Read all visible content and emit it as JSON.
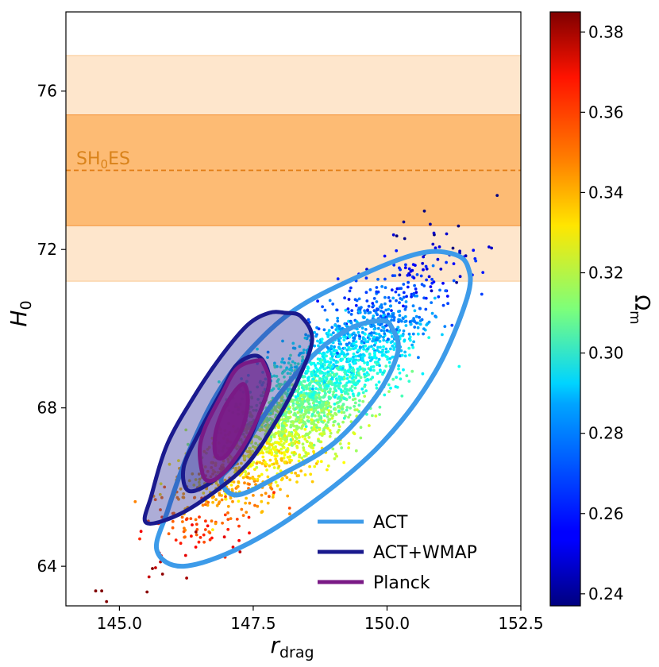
{
  "chart_data": {
    "type": "scatter",
    "xlabel": "r",
    "xlabel_sub": "drag",
    "ylabel": "H",
    "ylabel_sub": "0",
    "xlim": [
      144.0,
      152.5
    ],
    "ylim": [
      63.0,
      78.0
    ],
    "xticks": [
      145.0,
      147.5,
      150.0,
      152.5
    ],
    "xtick_labels": [
      "145.0",
      "147.5",
      "150.0",
      "152.5"
    ],
    "yticks": [
      64,
      68,
      72,
      76
    ],
    "ytick_labels": [
      "64",
      "68",
      "72",
      "76"
    ],
    "sh0es": {
      "label_main": "SH",
      "label_sub": "0",
      "label_end": "ES",
      "mean": 74.0,
      "band_1sigma": [
        72.6,
        75.4
      ],
      "band_2sigma": [
        71.2,
        76.9
      ]
    },
    "colorbar": {
      "label": "Ω",
      "label_sub": "m",
      "min": 0.237,
      "max": 0.385,
      "ticks": [
        0.24,
        0.26,
        0.28,
        0.3,
        0.32,
        0.34,
        0.36,
        0.38
      ],
      "tick_labels": [
        "0.24",
        "0.26",
        "0.28",
        "0.30",
        "0.32",
        "0.34",
        "0.36",
        "0.38"
      ]
    },
    "scatter_model": {
      "n_points": 2600,
      "mean_x": 148.6,
      "mean_y": 68.3,
      "sd_x": 1.15,
      "sd_y": 1.55,
      "correlation": 0.86,
      "omega_m_center": 0.305,
      "omega_m_slope_vs_H0": -0.0155,
      "omega_m_scatter": 0.006
    },
    "contours": [
      {
        "name": "ACT",
        "color": "#3d9be9",
        "outer": [
          [
            151.2,
            71.9
          ],
          [
            150.6,
            71.9
          ],
          [
            149.6,
            71.4
          ],
          [
            148.3,
            70.5
          ],
          [
            147.4,
            69.4
          ],
          [
            146.8,
            68.3
          ],
          [
            146.3,
            66.9
          ],
          [
            145.9,
            65.4
          ],
          [
            145.7,
            64.4
          ],
          [
            146.2,
            64.0
          ],
          [
            147.3,
            64.5
          ],
          [
            148.6,
            65.6
          ],
          [
            149.9,
            67.1
          ],
          [
            150.9,
            68.9
          ],
          [
            151.5,
            70.8
          ],
          [
            151.5,
            71.6
          ]
        ],
        "inner": [
          [
            149.9,
            70.2
          ],
          [
            149.3,
            70.0
          ],
          [
            148.6,
            69.3
          ],
          [
            147.8,
            68.0
          ],
          [
            147.2,
            66.7
          ],
          [
            146.9,
            66.2
          ],
          [
            147.2,
            65.8
          ],
          [
            148.0,
            66.3
          ],
          [
            149.0,
            67.1
          ],
          [
            149.8,
            68.3
          ],
          [
            150.2,
            69.4
          ],
          [
            150.1,
            70.0
          ]
        ]
      },
      {
        "name": "ACT+WMAP",
        "color": "#1a1a8e",
        "fill": "rgba(40,40,150,0.38)",
        "outer": [
          [
            148.1,
            70.4
          ],
          [
            147.8,
            70.4
          ],
          [
            147.4,
            70.1
          ],
          [
            146.9,
            69.3
          ],
          [
            146.4,
            68.3
          ],
          [
            145.9,
            67.1
          ],
          [
            145.6,
            65.8
          ],
          [
            145.5,
            65.1
          ],
          [
            146.1,
            65.3
          ],
          [
            146.8,
            65.9
          ],
          [
            147.4,
            66.6
          ],
          [
            147.9,
            67.6
          ],
          [
            148.3,
            68.6
          ],
          [
            148.6,
            69.7
          ],
          [
            148.4,
            70.3
          ]
        ],
        "inner": [
          [
            147.6,
            69.3
          ],
          [
            147.2,
            69.1
          ],
          [
            146.9,
            68.4
          ],
          [
            146.5,
            67.4
          ],
          [
            146.2,
            66.5
          ],
          [
            146.3,
            65.9
          ],
          [
            146.8,
            66.2
          ],
          [
            147.3,
            66.9
          ],
          [
            147.6,
            67.8
          ],
          [
            147.8,
            68.7
          ]
        ]
      },
      {
        "name": "Planck",
        "color": "#7a1a86",
        "fill": "#7a1a86",
        "outer": [
          [
            147.6,
            69.2
          ],
          [
            147.2,
            69.0
          ],
          [
            146.9,
            68.3
          ],
          [
            146.6,
            67.5
          ],
          [
            146.5,
            66.9
          ],
          [
            146.6,
            66.2
          ],
          [
            146.9,
            66.3
          ],
          [
            147.3,
            67.0
          ],
          [
            147.6,
            67.8
          ],
          [
            147.8,
            68.6
          ],
          [
            147.7,
            69.1
          ]
        ],
        "inner": [
          [
            147.3,
            68.6
          ],
          [
            147.0,
            68.1
          ],
          [
            146.8,
            67.4
          ],
          [
            146.8,
            66.8
          ],
          [
            147.0,
            66.8
          ],
          [
            147.3,
            67.5
          ],
          [
            147.4,
            68.2
          ]
        ]
      }
    ],
    "legend": {
      "position": "lower-right",
      "entries": [
        {
          "label": "ACT",
          "color": "#3d9be9"
        },
        {
          "label": "ACT+WMAP",
          "color": "#1a1a8e"
        },
        {
          "label": "Planck",
          "color": "#7a1a86"
        }
      ]
    }
  }
}
